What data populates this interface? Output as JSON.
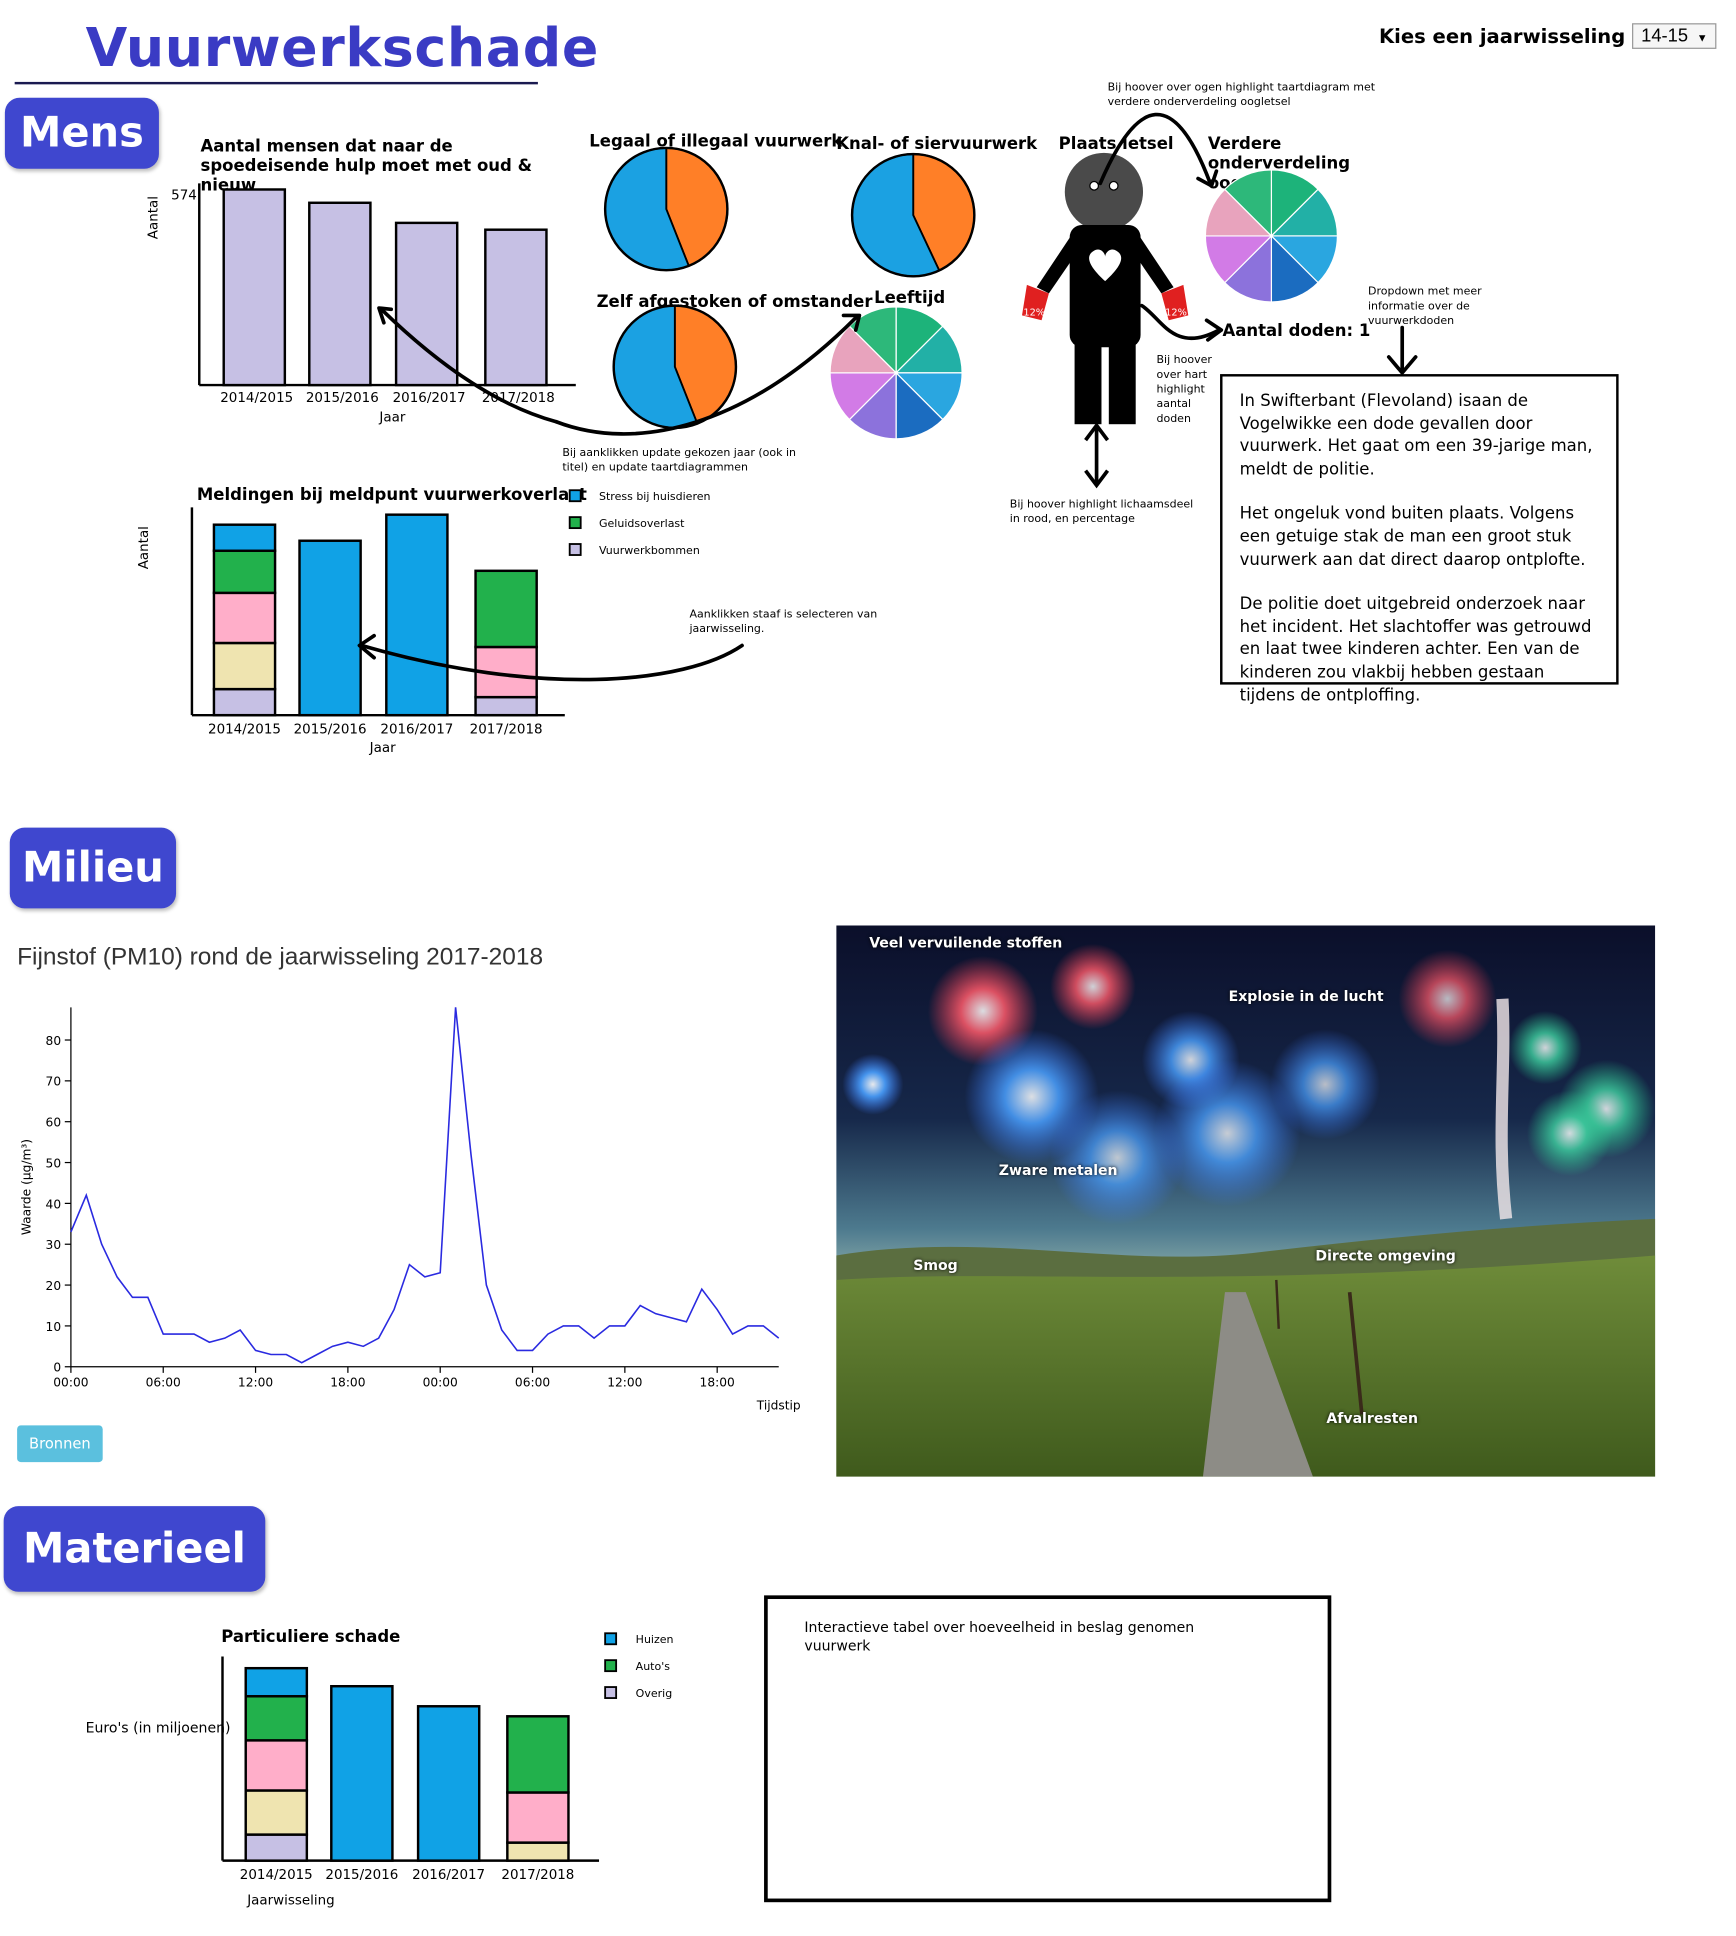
{
  "header": {
    "title": "Vuurwerkschade",
    "select_label": "Kies een jaarwisseling",
    "select_value": "14-15"
  },
  "sections": {
    "mens": "Mens",
    "milieu": "Milieu",
    "materieel": "Materieel"
  },
  "mens": {
    "spoed_chart": {
      "title": "Aantal mensen dat naar de spoedeisende hulp moet met oud & nieuw",
      "top_label": "574"
    },
    "pies": {
      "legaal": "Legaal of illegaal vuurwerk",
      "knal": "Knal- of siervuurwerk",
      "zelf": "Zelf afgestoken of omstander",
      "leeftijd": "Leeftijd",
      "plaats": "Plaats letsel",
      "verdere": "Verdere onderverdeling oogletsel"
    },
    "body_percent_left": "12%",
    "body_percent_right": "12%",
    "deaths_label": "Aantal doden: 1",
    "meldingen_chart": {
      "title": "Meldingen bij meldpunt vuurwerkoverlast",
      "legend": [
        "Stress bij huisdieren",
        "Geluidsoverlast",
        "Vuurwerkbommen"
      ]
    },
    "annotations": {
      "eyes": "Bij hoover over ogen highlight taartdiagram met verdere onderverdeling oogletsel",
      "dropdown": "Dropdown met meer informatie over de vuurwerkdoden",
      "heart": "Bij hoover over hart highlight aantal doden",
      "click_year": "Bij aanklikken update gekozen jaar (ook in titel) en update taartdiagrammen",
      "bodypart": "Bij hoover highlight lichaamsdeel in rood, en percentage",
      "click_bar": "Aanklikken staaf is selecteren van jaarwisseling."
    },
    "story": [
      "In Swifterbant (Flevoland) isaan de Vogelwikke een dode gevallen door vuurwerk. Het gaat om een 39-jarige man, meldt de politie.",
      "Het ongeluk vond buiten plaats. Volgens een getuige stak de man een groot stuk vuurwerk aan dat direct daarop ontplofte.",
      "De politie doet uitgebreid onderzoek naar het incident. Het slachtoffer was getrouwd en laat twee kinderen achter. Een van de kinderen zou vlakbij hebben gestaan tijdens de ontploffing."
    ]
  },
  "milieu": {
    "pm_title": "Fijnstof (PM10) rond de jaarwisseling 2017-2018",
    "bronnen_button": "Bronnen",
    "photo_labels": {
      "stoffen": "Veel vervuilende stoffen",
      "explosie": "Explosie in de lucht",
      "metalen": "Zware metalen",
      "smog": "Smog",
      "omgeving": "Directe omgeving",
      "afval": "Afvalresten"
    }
  },
  "materieel": {
    "chart": {
      "title": "Particuliere schade",
      "ylabel": "Euro's (in miljoenen)",
      "legend": [
        "Huizen",
        "Auto's",
        "Overig"
      ]
    },
    "table_note": "Interactieve tabel over hoeveelheid in beslag genomen vuurwerk"
  },
  "colors": {
    "section": "#3f47cf",
    "lavender": "#c6c0e4",
    "blue": "#10a2e6",
    "green": "#22b14c",
    "pink": "#ffaec9",
    "beige": "#efe4b0",
    "pie_blue": "#1ba1e2",
    "pie_orange": "#ff7f27",
    "line": "#2a2ae0"
  },
  "chart_data": [
    {
      "id": "spoed",
      "type": "bar",
      "title": "Aantal mensen dat naar de spoedeisende hulp moet met oud & nieuw",
      "xlabel": "Jaar",
      "ylabel": "Aantal",
      "categories": [
        "2014/2015",
        "2015/2016",
        "2016/2017",
        "2017/2018"
      ],
      "values": [
        574,
        535,
        476,
        456
      ],
      "ylim": [
        0,
        574
      ]
    },
    {
      "id": "meldingen",
      "type": "bar",
      "stacked": true,
      "title": "Meldingen bij meldpunt vuurwerkoverlast",
      "xlabel": "Jaar",
      "ylabel": "Aantal",
      "categories": [
        "2014/2015",
        "2015/2016",
        "2016/2017",
        "2017/2018"
      ],
      "series": [
        {
          "name": "Vuurwerkbommen",
          "values": [
            13,
            0,
            0,
            9
          ]
        },
        {
          "name": "",
          "values": [
            23,
            0,
            0,
            0
          ]
        },
        {
          "name": "",
          "values": [
            25,
            0,
            0,
            25
          ]
        },
        {
          "name": "Geluidsoverlast",
          "values": [
            21,
            0,
            0,
            38
          ]
        },
        {
          "name": "Stress bij huisdieren",
          "values": [
            13,
            87,
            100,
            0
          ]
        }
      ]
    },
    {
      "id": "pm10",
      "type": "line",
      "title": "Fijnstof (PM10) rond de jaarwisseling 2017-2018",
      "xlabel": "Tijdstip",
      "ylabel": "Waarde (µg/m³)",
      "ylim": [
        0,
        88
      ],
      "xticks": [
        "00:00",
        "06:00",
        "12:00",
        "18:00",
        "00:00",
        "06:00",
        "12:00",
        "18:00"
      ],
      "x_hours": [
        0,
        1,
        2,
        3,
        4,
        5,
        6,
        7,
        8,
        9,
        10,
        11,
        12,
        13,
        14,
        15,
        16,
        17,
        18,
        19,
        20,
        21,
        22,
        23,
        24,
        25,
        26,
        27,
        28,
        29,
        30,
        31,
        32,
        33,
        34,
        35,
        36,
        37,
        38,
        39,
        40,
        41,
        42,
        43,
        44,
        45,
        46
      ],
      "values": [
        33,
        42,
        30,
        22,
        17,
        17,
        8,
        8,
        8,
        6,
        7,
        9,
        4,
        3,
        3,
        1,
        3,
        5,
        6,
        5,
        7,
        14,
        25,
        22,
        23,
        88,
        52,
        20,
        9,
        4,
        4,
        8,
        10,
        10,
        7,
        10,
        10,
        15,
        13,
        12,
        11,
        19,
        14,
        8,
        10,
        10,
        7
      ]
    },
    {
      "id": "particulier",
      "type": "bar",
      "stacked": true,
      "title": "Particuliere schade",
      "xlabel": "Jaarwisseling",
      "ylabel": "Euro's (in miljoenen)",
      "categories": [
        "2014/2015",
        "2015/2016",
        "2016/2017",
        "2017/2018"
      ],
      "series": [
        {
          "name": "Overig",
          "values": [
            13,
            0,
            0,
            0
          ]
        },
        {
          "name": "",
          "values": [
            22,
            0,
            0,
            9
          ]
        },
        {
          "name": "",
          "values": [
            25,
            0,
            0,
            25
          ]
        },
        {
          "name": "Auto's",
          "values": [
            22,
            0,
            0,
            38
          ]
        },
        {
          "name": "Huizen",
          "values": [
            14,
            87,
            77,
            0
          ]
        }
      ]
    },
    {
      "id": "pie-legaal",
      "type": "pie",
      "title": "Legaal of illegaal vuurwerk",
      "values": [
        56,
        44
      ]
    },
    {
      "id": "pie-knal",
      "type": "pie",
      "title": "Knal- of siervuurwerk",
      "values": [
        57,
        43
      ]
    },
    {
      "id": "pie-zelf",
      "type": "pie",
      "title": "Zelf afgestoken of omstander",
      "values": [
        56,
        44
      ]
    },
    {
      "id": "pie-leeftijd",
      "type": "pie",
      "title": "Leeftijd",
      "values": [
        1,
        1,
        1,
        1,
        1,
        1,
        1,
        1
      ]
    },
    {
      "id": "pie-oog",
      "type": "pie",
      "title": "Verdere onderverdeling oogletsel",
      "values": [
        1,
        1,
        1,
        1,
        1,
        1,
        1,
        1
      ]
    }
  ]
}
